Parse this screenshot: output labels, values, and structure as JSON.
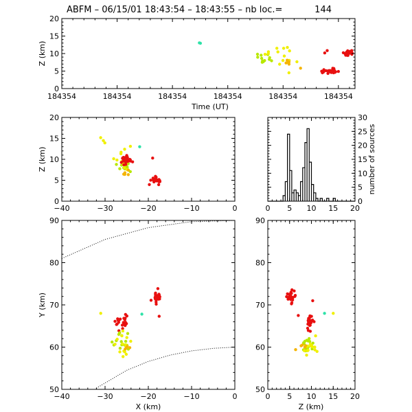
{
  "title": {
    "prefix": "ABFM – 06/15/01 18:43:54 – 18:43:55 – nb loc.=",
    "count": "144"
  },
  "colors": {
    "cyan": "#2fe2a8",
    "yellow": "#f0f000",
    "lime": "#b8e800",
    "orange": "#f5b400",
    "red": "#e81010"
  },
  "chart_data": [
    {
      "id": "time-height",
      "type": "scatter",
      "xlabel": "Time (UT)",
      "ylabel": "Z (km)",
      "x_tick_labels": [
        "184354",
        "184354",
        "184354",
        "184354",
        "184354",
        "184354"
      ],
      "xlim": [
        0,
        1
      ],
      "ylim": [
        0,
        20
      ],
      "y_ticks": [
        0,
        5,
        10,
        15,
        20
      ],
      "clusters": [
        {
          "color": "cyan",
          "n": 2,
          "cx": 0.47,
          "cy": 13.0,
          "sx": 0.003,
          "sy": 0.15
        },
        {
          "color": "lime",
          "n": 12,
          "cx": 0.69,
          "cy": 8.8,
          "sx": 0.015,
          "sy": 0.8
        },
        {
          "color": "yellow",
          "n": 14,
          "cx": 0.75,
          "cy": 9.5,
          "sx": 0.025,
          "sy": 2.0
        },
        {
          "color": "orange",
          "n": 6,
          "cx": 0.79,
          "cy": 7.0,
          "sx": 0.02,
          "sy": 0.7
        },
        {
          "color": "red",
          "n": 30,
          "cx": 0.915,
          "cy": 5.0,
          "sx": 0.015,
          "sy": 0.35
        },
        {
          "color": "red",
          "n": 28,
          "cx": 0.975,
          "cy": 10.0,
          "sx": 0.015,
          "sy": 0.4
        },
        {
          "color": "red",
          "n": 2,
          "cx": 0.9,
          "cy": 10.3,
          "sx": 0.003,
          "sy": 0.2
        }
      ]
    },
    {
      "id": "x-z",
      "type": "scatter",
      "xlabel": "",
      "ylabel": "Z (km)",
      "xlim": [
        -40,
        0
      ],
      "ylim": [
        0,
        20
      ],
      "x_ticks": [
        -40,
        -30,
        -20,
        -10,
        0
      ],
      "y_ticks": [
        0,
        5,
        10,
        15,
        20
      ],
      "clusters": [
        {
          "color": "yellow",
          "n": 3,
          "cx": -30.5,
          "cy": 14.5,
          "sx": 0.6,
          "sy": 0.6
        },
        {
          "color": "cyan",
          "n": 1,
          "cx": -22.0,
          "cy": 13.0,
          "sx": 0.1,
          "sy": 0.1
        },
        {
          "color": "red",
          "n": 1,
          "cx": -19.0,
          "cy": 10.3,
          "sx": 0.1,
          "sy": 0.1
        },
        {
          "color": "lime",
          "n": 16,
          "cx": -26.0,
          "cy": 8.5,
          "sx": 0.8,
          "sy": 0.9
        },
        {
          "color": "yellow",
          "n": 14,
          "cx": -25.8,
          "cy": 9.5,
          "sx": 1.0,
          "sy": 1.5
        },
        {
          "color": "orange",
          "n": 5,
          "cx": -25.0,
          "cy": 7.0,
          "sx": 0.6,
          "sy": 0.5
        },
        {
          "color": "red",
          "n": 30,
          "cx": -25.2,
          "cy": 9.7,
          "sx": 0.6,
          "sy": 0.5
        },
        {
          "color": "red",
          "n": 30,
          "cx": -18.3,
          "cy": 4.9,
          "sx": 0.45,
          "sy": 0.35
        }
      ]
    },
    {
      "id": "z-histogram",
      "type": "bar",
      "xlabel": "",
      "ylabel": "number of sources",
      "xlim": [
        0,
        20
      ],
      "ylim": [
        0,
        30
      ],
      "x_ticks": [
        0,
        5,
        10,
        15,
        20
      ],
      "y_ticks": [
        0,
        5,
        10,
        15,
        20,
        25,
        30
      ],
      "bin_width": 0.5,
      "bin_starts": [
        3.5,
        4.0,
        4.5,
        5.0,
        5.5,
        6.0,
        6.5,
        7.0,
        7.5,
        8.0,
        8.5,
        9.0,
        9.5,
        10.0,
        10.5,
        11.0,
        12.0,
        13.5,
        15.0
      ],
      "counts": [
        2,
        7,
        24,
        11,
        3,
        4,
        3,
        2,
        7,
        12,
        21,
        26,
        14,
        6,
        3,
        1,
        1,
        1,
        1
      ]
    },
    {
      "id": "x-y",
      "type": "scatter",
      "xlabel": "X (km)",
      "ylabel": "Y (km)",
      "xlim": [
        -40,
        0
      ],
      "ylim": [
        50,
        90
      ],
      "x_ticks": [
        -40,
        -30,
        -20,
        -10,
        0
      ],
      "y_ticks": [
        50,
        60,
        70,
        80,
        90
      ],
      "boundary_curves": [
        {
          "x": [
            -40,
            -30,
            -20,
            -10,
            0
          ],
          "y": [
            81,
            85.5,
            88.3,
            89.7,
            90.0
          ]
        },
        {
          "x": [
            -32,
            -25,
            -20,
            -15,
            -10,
            -5,
            0
          ],
          "y": [
            50.3,
            54.5,
            56.6,
            58.1,
            59.1,
            59.7,
            60.0
          ]
        }
      ],
      "clusters": [
        {
          "color": "yellow",
          "n": 1,
          "cx": -31.0,
          "cy": 68.0,
          "sx": 0.1,
          "sy": 0.1
        },
        {
          "color": "cyan",
          "n": 1,
          "cx": -21.5,
          "cy": 67.8,
          "sx": 0.1,
          "sy": 0.1
        },
        {
          "color": "red",
          "n": 1,
          "cx": -17.5,
          "cy": 67.3,
          "sx": 0.1,
          "sy": 0.1
        },
        {
          "color": "red",
          "n": 30,
          "cx": -18.0,
          "cy": 71.8,
          "sx": 0.5,
          "sy": 0.7
        },
        {
          "color": "red",
          "n": 22,
          "cx": -26.0,
          "cy": 66.0,
          "sx": 0.9,
          "sy": 1.0
        },
        {
          "color": "lime",
          "n": 14,
          "cx": -26.5,
          "cy": 61.0,
          "sx": 0.9,
          "sy": 1.2
        },
        {
          "color": "yellow",
          "n": 14,
          "cx": -25.5,
          "cy": 60.0,
          "sx": 1.0,
          "sy": 1.3
        },
        {
          "color": "orange",
          "n": 4,
          "cx": -25.5,
          "cy": 60.0,
          "sx": 0.5,
          "sy": 0.5
        }
      ]
    },
    {
      "id": "z-y",
      "type": "scatter",
      "xlabel": "Z (km)",
      "ylabel": "",
      "xlim": [
        0,
        20
      ],
      "ylim": [
        50,
        90
      ],
      "x_ticks": [
        0,
        5,
        10,
        15,
        20
      ],
      "y_ticks": [
        50,
        60,
        70,
        80,
        90
      ],
      "clusters": [
        {
          "color": "red",
          "n": 30,
          "cx": 5.2,
          "cy": 71.8,
          "sx": 0.4,
          "sy": 0.7
        },
        {
          "color": "red",
          "n": 1,
          "cx": 10.3,
          "cy": 71.0,
          "sx": 0.1,
          "sy": 0.1
        },
        {
          "color": "red",
          "n": 1,
          "cx": 7.0,
          "cy": 67.5,
          "sx": 0.1,
          "sy": 0.1
        },
        {
          "color": "cyan",
          "n": 1,
          "cx": 13.0,
          "cy": 68.0,
          "sx": 0.1,
          "sy": 0.1
        },
        {
          "color": "yellow",
          "n": 1,
          "cx": 15.0,
          "cy": 68.0,
          "sx": 0.1,
          "sy": 0.1
        },
        {
          "color": "red",
          "n": 24,
          "cx": 9.7,
          "cy": 66.0,
          "sx": 0.5,
          "sy": 1.0
        },
        {
          "color": "lime",
          "n": 14,
          "cx": 8.8,
          "cy": 60.5,
          "sx": 0.8,
          "sy": 1.1
        },
        {
          "color": "yellow",
          "n": 16,
          "cx": 9.7,
          "cy": 60.2,
          "sx": 1.1,
          "sy": 1.3
        },
        {
          "color": "orange",
          "n": 5,
          "cx": 7.5,
          "cy": 60.0,
          "sx": 0.5,
          "sy": 0.5
        }
      ]
    }
  ]
}
